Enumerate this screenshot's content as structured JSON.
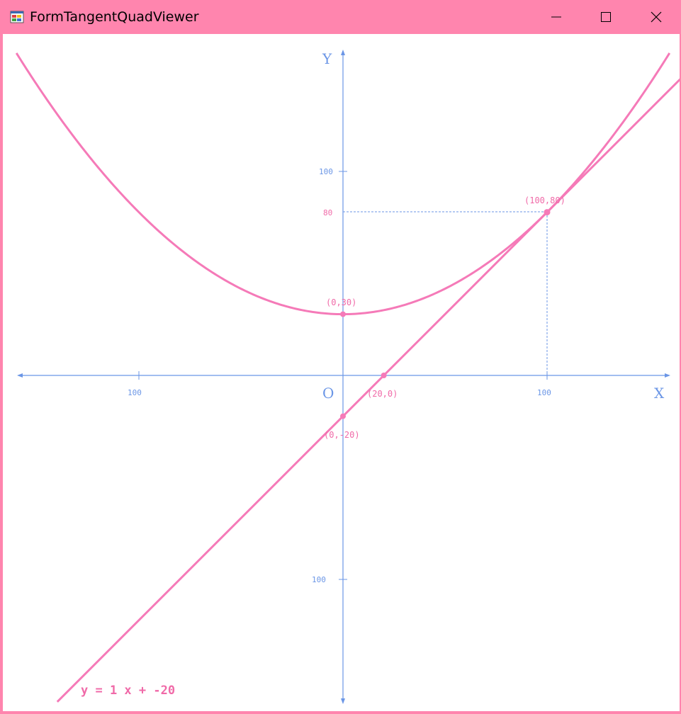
{
  "window": {
    "title": "FormTangentQuadViewer",
    "icons": {
      "app": "app-icon",
      "minimize": "minimize-icon",
      "maximize": "maximize-icon",
      "close": "close-icon"
    }
  },
  "colors": {
    "titlebar": "#ff85ae",
    "axis": "#6b96e6",
    "curve": "#f57ab8",
    "label": "#f06aa8"
  },
  "chart_data": {
    "type": "line",
    "axes": {
      "x_label": "X",
      "y_label": "Y",
      "origin_label": "O"
    },
    "x_ticks": [
      "100",
      "100"
    ],
    "y_ticks": [
      "100",
      "80",
      "100"
    ],
    "series": [
      {
        "kind": "parabola",
        "equation_params": {
          "a": 0.005,
          "b": 0,
          "c": 30
        }
      },
      {
        "kind": "tangent",
        "equation_params": {
          "m": 1,
          "c": -20
        }
      }
    ],
    "points": [
      {
        "label": "(100,80)",
        "x": 100,
        "y": 80
      },
      {
        "label": "(0,30)",
        "x": 0,
        "y": 30
      },
      {
        "label": "(20,0)",
        "x": 20,
        "y": 0
      },
      {
        "label": "(0,-20)",
        "x": 0,
        "y": -20
      }
    ],
    "equation_label": "y = 1 x + -20"
  }
}
